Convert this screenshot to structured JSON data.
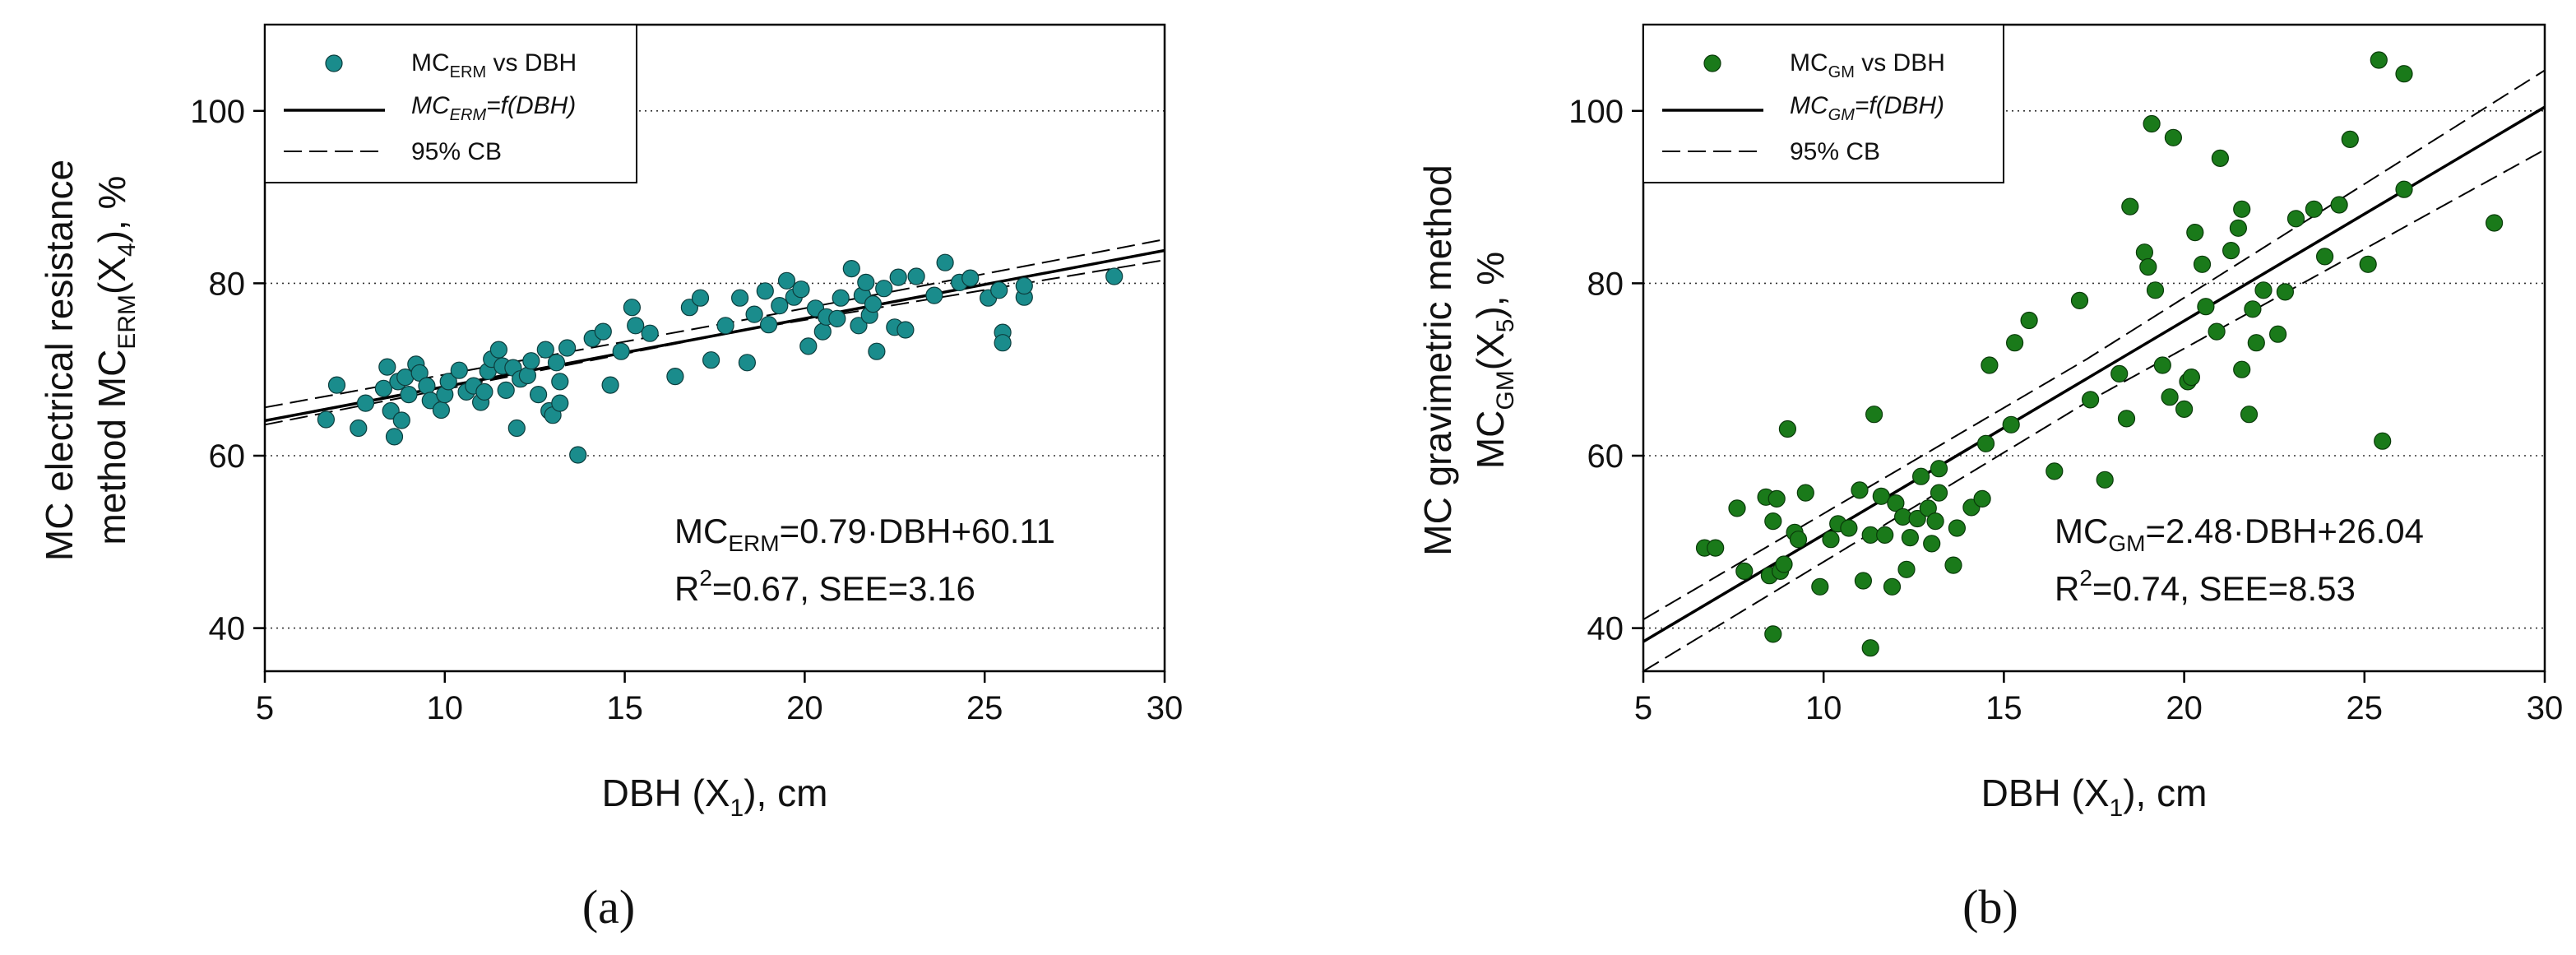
{
  "chart_data": [
    {
      "type": "scatter",
      "panel_label": "(a)",
      "xlabel": {
        "main": "DBH (X",
        "sub": "1",
        "tail": "), cm"
      },
      "ylabel_line1": "MC electrical resistance",
      "ylabel_line2": {
        "pre": "method MC",
        "sub": "ERM",
        "mid": "(X",
        "sub2": "4",
        "tail": "), %"
      },
      "xlim": [
        5,
        30
      ],
      "ylim": [
        35,
        110
      ],
      "xticks": [
        5,
        10,
        15,
        20,
        25,
        30
      ],
      "yticks": [
        40,
        60,
        80,
        100
      ],
      "grid": "horizontal dotted",
      "marker_color": "#1a8c8c",
      "legend_position": "top-left",
      "legend": [
        {
          "kind": "marker",
          "label": {
            "pre": "MC",
            "sub": "ERM",
            "tail": " vs DBH"
          }
        },
        {
          "kind": "solid",
          "label": {
            "pre": "MC",
            "sub": "ERM",
            "tail": "=f(DBH)"
          }
        },
        {
          "kind": "dashed",
          "label": {
            "pre": "95% CB",
            "sub": "",
            "tail": ""
          }
        }
      ],
      "equation": {
        "pre": "MC",
        "sub": "ERM",
        "tail": "=0.79·DBH+60.11"
      },
      "stats": {
        "pre": "R",
        "sup": "2",
        "tail": "=0.67, SEE=3.16"
      },
      "fit": {
        "slope": 0.79,
        "intercept": 60.11,
        "x_range": [
          5,
          30
        ]
      },
      "ci_band": {
        "lower": [
          [
            5,
            63.6
          ],
          [
            18.5,
            74.7
          ],
          [
            30,
            82.7
          ]
        ],
        "upper": [
          [
            5,
            65.6
          ],
          [
            18.5,
            75.9
          ],
          [
            30,
            85.1
          ]
        ]
      },
      "points": [
        [
          6.7,
          64.2
        ],
        [
          7.0,
          68.2
        ],
        [
          7.6,
          63.2
        ],
        [
          7.8,
          66.1
        ],
        [
          8.3,
          67.8
        ],
        [
          8.4,
          70.3
        ],
        [
          8.5,
          65.2
        ],
        [
          8.6,
          62.2
        ],
        [
          8.7,
          68.6
        ],
        [
          8.8,
          64.1
        ],
        [
          8.9,
          69.1
        ],
        [
          9.0,
          67.1
        ],
        [
          9.2,
          70.6
        ],
        [
          9.3,
          69.6
        ],
        [
          9.5,
          68.1
        ],
        [
          9.6,
          66.4
        ],
        [
          9.9,
          65.3
        ],
        [
          10.0,
          67.1
        ],
        [
          10.1,
          68.6
        ],
        [
          10.4,
          69.9
        ],
        [
          10.6,
          67.4
        ],
        [
          10.8,
          68.1
        ],
        [
          11.0,
          66.2
        ],
        [
          11.1,
          67.4
        ],
        [
          11.2,
          69.8
        ],
        [
          11.3,
          71.2
        ],
        [
          11.5,
          72.3
        ],
        [
          11.6,
          70.4
        ],
        [
          11.7,
          67.6
        ],
        [
          11.9,
          70.2
        ],
        [
          12.0,
          63.2
        ],
        [
          12.1,
          68.9
        ],
        [
          12.3,
          69.3
        ],
        [
          12.4,
          71.0
        ],
        [
          12.6,
          67.1
        ],
        [
          12.8,
          72.3
        ],
        [
          12.9,
          65.2
        ],
        [
          13.0,
          64.7
        ],
        [
          13.1,
          70.8
        ],
        [
          13.2,
          68.6
        ],
        [
          13.2,
          66.1
        ],
        [
          13.4,
          72.5
        ],
        [
          13.7,
          60.1
        ],
        [
          14.1,
          73.6
        ],
        [
          14.4,
          74.4
        ],
        [
          14.6,
          68.2
        ],
        [
          14.9,
          72.1
        ],
        [
          15.2,
          77.2
        ],
        [
          15.3,
          75.1
        ],
        [
          15.7,
          74.2
        ],
        [
          16.4,
          69.2
        ],
        [
          16.8,
          77.2
        ],
        [
          17.1,
          78.3
        ],
        [
          17.4,
          71.1
        ],
        [
          17.8,
          75.1
        ],
        [
          18.2,
          78.3
        ],
        [
          18.4,
          70.8
        ],
        [
          18.6,
          76.4
        ],
        [
          18.9,
          79.1
        ],
        [
          19.0,
          75.2
        ],
        [
          19.3,
          77.4
        ],
        [
          19.5,
          80.3
        ],
        [
          19.7,
          78.4
        ],
        [
          19.9,
          79.3
        ],
        [
          20.1,
          72.7
        ],
        [
          20.3,
          77.1
        ],
        [
          20.5,
          74.4
        ],
        [
          20.6,
          76.1
        ],
        [
          20.9,
          75.9
        ],
        [
          21.0,
          78.3
        ],
        [
          21.3,
          81.7
        ],
        [
          21.5,
          75.1
        ],
        [
          21.6,
          78.6
        ],
        [
          21.7,
          80.1
        ],
        [
          21.8,
          76.3
        ],
        [
          21.9,
          77.6
        ],
        [
          22.0,
          72.1
        ],
        [
          22.2,
          79.4
        ],
        [
          22.5,
          74.9
        ],
        [
          22.6,
          80.7
        ],
        [
          22.8,
          74.6
        ],
        [
          23.1,
          80.8
        ],
        [
          23.6,
          78.6
        ],
        [
          23.9,
          82.4
        ],
        [
          24.3,
          80.1
        ],
        [
          24.6,
          80.6
        ],
        [
          25.1,
          78.3
        ],
        [
          25.4,
          79.2
        ],
        [
          25.5,
          74.3
        ],
        [
          25.5,
          73.1
        ],
        [
          26.1,
          78.4
        ],
        [
          26.1,
          79.7
        ],
        [
          28.6,
          80.8
        ]
      ]
    },
    {
      "type": "scatter",
      "panel_label": "(b)",
      "xlabel": {
        "main": "DBH (X",
        "sub": "1",
        "tail": "), cm"
      },
      "ylabel_line1": "MC gravimetric method",
      "ylabel_line2": {
        "pre": "MC",
        "sub": "GM",
        "mid": "(X",
        "sub2": "5",
        "tail": "), %"
      },
      "xlim": [
        5,
        30
      ],
      "ylim": [
        35,
        110
      ],
      "xticks": [
        5,
        10,
        15,
        20,
        25,
        30
      ],
      "yticks": [
        40,
        60,
        80,
        100
      ],
      "grid": "horizontal dotted",
      "marker_color": "#1a7a1a",
      "legend_position": "top-left",
      "legend": [
        {
          "kind": "marker",
          "label": {
            "pre": "MC",
            "sub": "GM",
            "tail": " vs DBH"
          }
        },
        {
          "kind": "solid",
          "label": {
            "pre": "MC",
            "sub": "GM",
            "tail": "=f(DBH)"
          }
        },
        {
          "kind": "dashed",
          "label": {
            "pre": "95% CB",
            "sub": "",
            "tail": ""
          }
        }
      ],
      "equation": {
        "pre": "MC",
        "sub": "GM",
        "tail": "=2.48·DBH+26.04"
      },
      "stats": {
        "pre": "R",
        "sup": "2",
        "tail": "=0.74, SEE=8.53"
      },
      "fit": {
        "slope": 2.48,
        "intercept": 26.04,
        "x_range": [
          5,
          30
        ]
      },
      "ci_band": {
        "lower": [
          [
            5,
            35.0
          ],
          [
            17.3,
            66.2
          ],
          [
            30,
            95.5
          ]
        ],
        "upper": [
          [
            5,
            41.0
          ],
          [
            17.3,
            71.2
          ],
          [
            30,
            104.7
          ]
        ]
      },
      "points": [
        [
          6.7,
          49.3
        ],
        [
          7.0,
          49.3
        ],
        [
          7.6,
          53.9
        ],
        [
          7.8,
          46.6
        ],
        [
          8.4,
          55.2
        ],
        [
          8.5,
          46.1
        ],
        [
          8.6,
          39.3
        ],
        [
          8.6,
          52.4
        ],
        [
          8.7,
          55.0
        ],
        [
          8.8,
          46.6
        ],
        [
          8.9,
          47.4
        ],
        [
          9.0,
          63.1
        ],
        [
          9.2,
          51.1
        ],
        [
          9.3,
          50.3
        ],
        [
          9.5,
          55.7
        ],
        [
          9.9,
          44.8
        ],
        [
          10.2,
          50.3
        ],
        [
          10.4,
          52.1
        ],
        [
          10.7,
          51.6
        ],
        [
          11.0,
          56.0
        ],
        [
          11.1,
          45.5
        ],
        [
          11.3,
          37.7
        ],
        [
          11.3,
          50.8
        ],
        [
          11.4,
          64.8
        ],
        [
          11.6,
          55.3
        ],
        [
          11.7,
          50.8
        ],
        [
          11.9,
          44.8
        ],
        [
          12.0,
          54.5
        ],
        [
          12.2,
          52.9
        ],
        [
          12.3,
          46.8
        ],
        [
          12.4,
          50.5
        ],
        [
          12.6,
          52.7
        ],
        [
          12.7,
          57.6
        ],
        [
          12.9,
          53.9
        ],
        [
          13.0,
          49.8
        ],
        [
          13.1,
          52.4
        ],
        [
          13.2,
          58.5
        ],
        [
          13.2,
          55.7
        ],
        [
          13.6,
          47.3
        ],
        [
          13.7,
          51.6
        ],
        [
          14.1,
          54.0
        ],
        [
          14.4,
          55.0
        ],
        [
          14.5,
          61.4
        ],
        [
          14.6,
          70.5
        ],
        [
          15.2,
          63.6
        ],
        [
          15.3,
          73.1
        ],
        [
          15.7,
          75.7
        ],
        [
          16.4,
          58.2
        ],
        [
          17.1,
          78.0
        ],
        [
          17.4,
          66.5
        ],
        [
          17.8,
          57.2
        ],
        [
          18.2,
          69.5
        ],
        [
          18.4,
          64.3
        ],
        [
          18.5,
          88.9
        ],
        [
          18.9,
          83.6
        ],
        [
          19.0,
          81.9
        ],
        [
          19.1,
          98.5
        ],
        [
          19.2,
          79.2
        ],
        [
          19.4,
          70.5
        ],
        [
          19.6,
          66.8
        ],
        [
          19.7,
          96.9
        ],
        [
          20.0,
          65.4
        ],
        [
          20.1,
          68.6
        ],
        [
          20.2,
          69.1
        ],
        [
          20.3,
          85.9
        ],
        [
          20.5,
          82.2
        ],
        [
          20.6,
          77.3
        ],
        [
          20.9,
          74.4
        ],
        [
          21.0,
          94.5
        ],
        [
          21.3,
          83.8
        ],
        [
          21.5,
          86.4
        ],
        [
          21.6,
          88.6
        ],
        [
          21.6,
          70.0
        ],
        [
          21.8,
          64.8
        ],
        [
          21.9,
          77.0
        ],
        [
          22.0,
          73.1
        ],
        [
          22.2,
          79.2
        ],
        [
          22.6,
          74.1
        ],
        [
          22.8,
          79.0
        ],
        [
          23.1,
          87.5
        ],
        [
          23.6,
          88.6
        ],
        [
          23.9,
          83.1
        ],
        [
          24.3,
          89.1
        ],
        [
          24.6,
          96.7
        ],
        [
          25.1,
          82.2
        ],
        [
          25.4,
          105.9
        ],
        [
          25.5,
          61.7
        ],
        [
          26.1,
          90.9
        ],
        [
          26.1,
          104.3
        ],
        [
          28.6,
          87.0
        ]
      ]
    }
  ]
}
